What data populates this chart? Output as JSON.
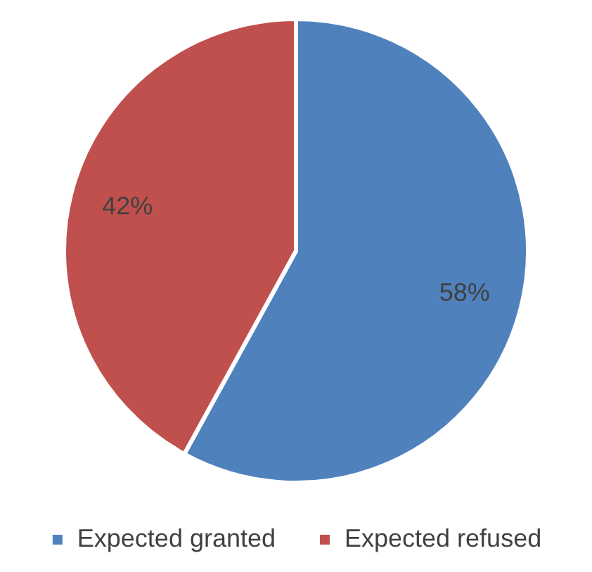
{
  "chart_data": {
    "type": "pie",
    "categories": [
      "Expected granted",
      "Expected refused"
    ],
    "values": [
      58,
      42
    ],
    "colors": [
      "#4f81bd",
      "#c0504d"
    ],
    "value_labels": [
      "58%",
      "42%"
    ],
    "legend": "bottom"
  }
}
